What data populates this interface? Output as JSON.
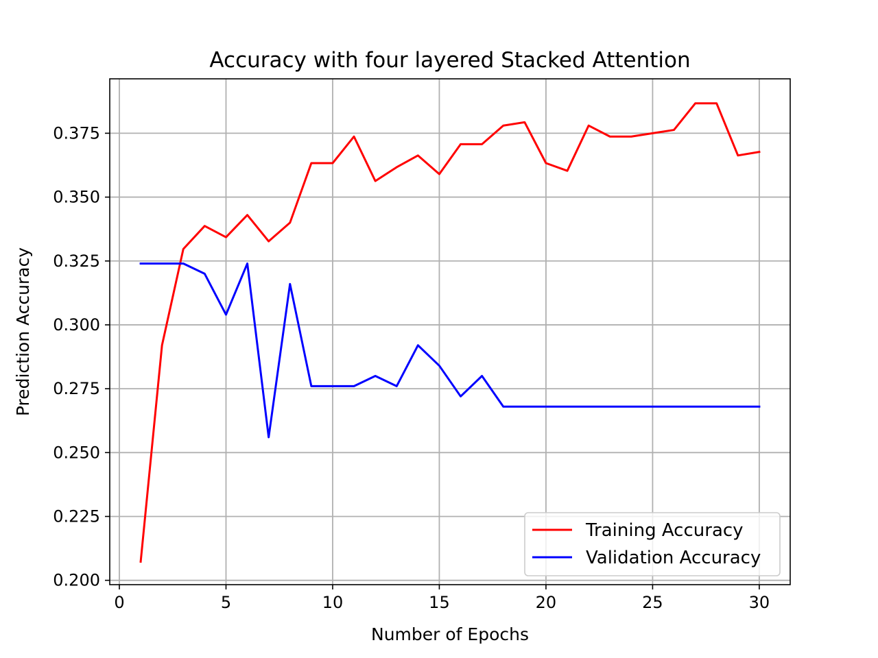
{
  "chart_data": {
    "type": "line",
    "title": "Accuracy with four layered Stacked Attention",
    "xlabel": "Number of Epochs",
    "ylabel": "Prediction Accuracy",
    "xlim": [
      -0.45,
      31.45
    ],
    "ylim": [
      0.1983,
      0.3963
    ],
    "xticks": [
      0,
      5,
      10,
      15,
      20,
      25,
      30
    ],
    "xtick_labels": [
      "0",
      "5",
      "10",
      "15",
      "20",
      "25",
      "30"
    ],
    "yticks": [
      0.2,
      0.225,
      0.25,
      0.275,
      0.3,
      0.325,
      0.35,
      0.375
    ],
    "ytick_labels": [
      "0.200",
      "0.225",
      "0.250",
      "0.275",
      "0.300",
      "0.325",
      "0.350",
      "0.375"
    ],
    "grid": true,
    "legend_position": "lower-right",
    "x": [
      1,
      2,
      3,
      4,
      5,
      6,
      7,
      8,
      9,
      10,
      11,
      12,
      13,
      14,
      15,
      16,
      17,
      18,
      19,
      20,
      21,
      22,
      23,
      24,
      25,
      26,
      27,
      28,
      29,
      30
    ],
    "series": [
      {
        "name": "Training Accuracy",
        "color": "#ff0000",
        "values": [
          0.2073,
          0.292,
          0.3297,
          0.3387,
          0.3343,
          0.343,
          0.3327,
          0.34,
          0.3633,
          0.3633,
          0.3737,
          0.3563,
          0.3617,
          0.3663,
          0.359,
          0.3707,
          0.3707,
          0.378,
          0.3793,
          0.3633,
          0.3603,
          0.378,
          0.3737,
          0.3737,
          0.375,
          0.3763,
          0.3867,
          0.3867,
          0.3663,
          0.3677
        ]
      },
      {
        "name": "Validation Accuracy",
        "color": "#0000ff",
        "values": [
          0.324,
          0.324,
          0.324,
          0.32,
          0.304,
          0.324,
          0.256,
          0.316,
          0.276,
          0.276,
          0.276,
          0.28,
          0.276,
          0.292,
          0.284,
          0.272,
          0.28,
          0.268,
          0.268,
          0.268,
          0.268,
          0.268,
          0.268,
          0.268,
          0.268,
          0.268,
          0.268,
          0.268,
          0.268,
          0.268
        ]
      }
    ]
  }
}
